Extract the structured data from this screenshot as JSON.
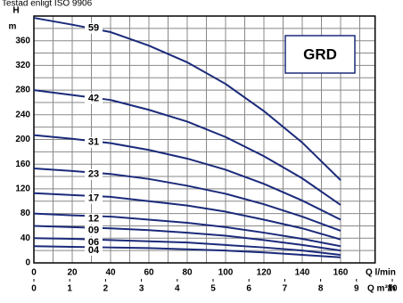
{
  "chart_data": {
    "type": "line",
    "note_text": "Testad enligt ISO 9906",
    "ylabel_top": "H",
    "ylabel_unit": "m",
    "xlabel": "Q l/min",
    "x2label": "Q m³/h",
    "legend_box": "GRD",
    "x": [
      0,
      20,
      40,
      60,
      80,
      100,
      120,
      140,
      160
    ],
    "series": [
      {
        "name": "59",
        "color": "#1b2a7a",
        "values": [
          397,
          386,
          374,
          352,
          325,
          290,
          246,
          195,
          134
        ]
      },
      {
        "name": "42",
        "color": "#1b2a7a",
        "values": [
          280,
          272,
          264,
          248,
          229,
          204,
          173,
          137,
          94
        ]
      },
      {
        "name": "31",
        "color": "#1b2a7a",
        "values": [
          207,
          201,
          194,
          183,
          169,
          151,
          128,
          101,
          70
        ]
      },
      {
        "name": "23",
        "color": "#1b2a7a",
        "values": [
          153,
          149,
          144,
          136,
          125,
          112,
          95,
          75,
          52
        ]
      },
      {
        "name": "17",
        "color": "#1b2a7a",
        "values": [
          113,
          110,
          107,
          100,
          93,
          83,
          70,
          56,
          38
        ]
      },
      {
        "name": "12",
        "color": "#1b2a7a",
        "values": [
          80,
          77,
          75,
          70,
          65,
          58,
          49,
          39,
          27
        ]
      },
      {
        "name": "09",
        "color": "#1b2a7a",
        "values": [
          60,
          58,
          56,
          53,
          49,
          44,
          37,
          29,
          20
        ]
      },
      {
        "name": "06",
        "color": "#1b2a7a",
        "values": [
          40,
          39,
          37,
          35,
          33,
          29,
          25,
          20,
          13
        ]
      },
      {
        "name": "04",
        "color": "#1b2a7a",
        "values": [
          27,
          26,
          25,
          24,
          22,
          20,
          17,
          13,
          9
        ]
      }
    ],
    "xlim": [
      0,
      178
    ],
    "ylim": [
      0,
      400
    ],
    "xticks": [
      0,
      20,
      40,
      60,
      80,
      100,
      120,
      140,
      160
    ],
    "yticks": [
      0,
      40,
      80,
      120,
      160,
      200,
      240,
      280,
      320,
      360
    ],
    "x_minor_ticks": [
      10,
      30,
      50,
      70,
      90,
      110,
      130,
      150,
      170
    ],
    "y_minor_ticks": [
      20,
      60,
      100,
      140,
      180,
      220,
      260,
      300,
      340,
      380
    ],
    "x2lim": [
      0,
      10
    ],
    "x2ticks": [
      0,
      1,
      2,
      3,
      4,
      5,
      6,
      7,
      8,
      9,
      10
    ],
    "grid": true
  }
}
